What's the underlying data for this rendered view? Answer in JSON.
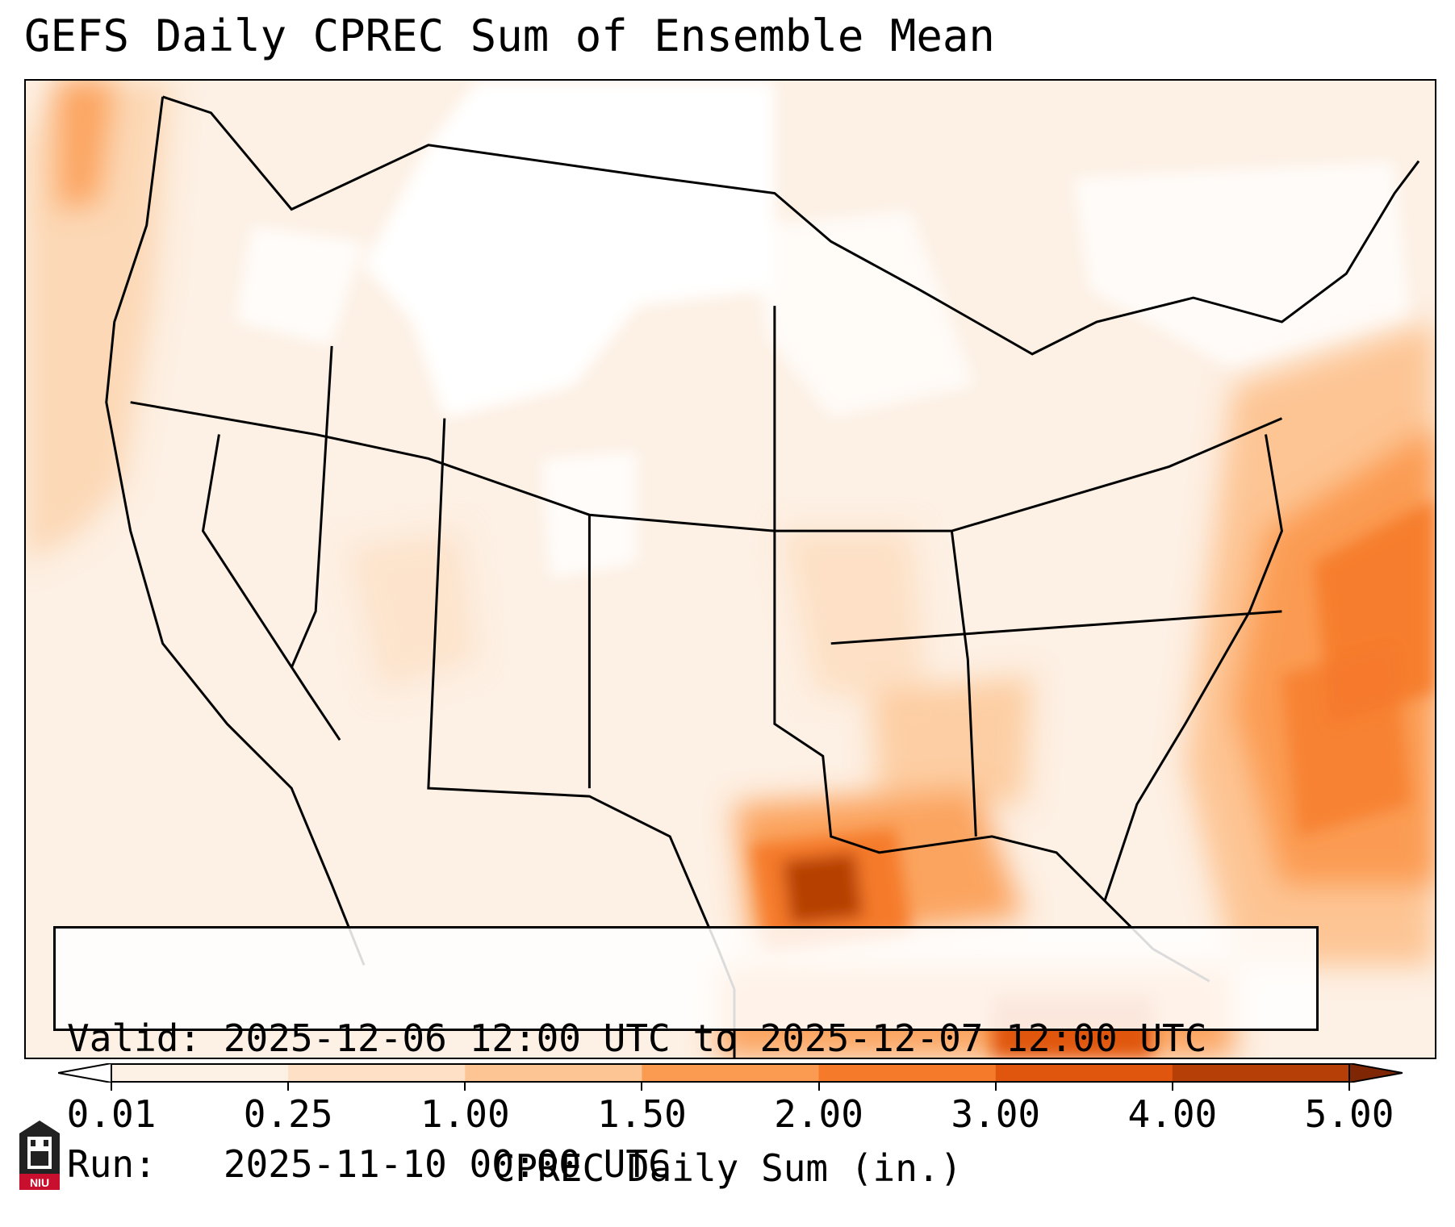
{
  "title": "GEFS Daily CPREC Sum of Ensemble Mean",
  "info": {
    "valid": "Valid: 2025-12-06 12:00 UTC to 2025-12-07 12:00 UTC",
    "run": "Run:   2025-11-10 00:00 UTC"
  },
  "colorbar": {
    "label": "CPREC Daily Sum (in.)",
    "ticks": [
      "0.01",
      "0.25",
      "1.00",
      "1.50",
      "2.00",
      "3.00",
      "4.00",
      "5.00"
    ],
    "colors": [
      "#ffffff",
      "#fdf0e4",
      "#fde0c5",
      "#fdc594",
      "#fb9b52",
      "#f57a2a",
      "#e0560e",
      "#b53f06",
      "#7f2704"
    ]
  },
  "logo": {
    "text": "NIU",
    "color": "#c8102e"
  }
}
